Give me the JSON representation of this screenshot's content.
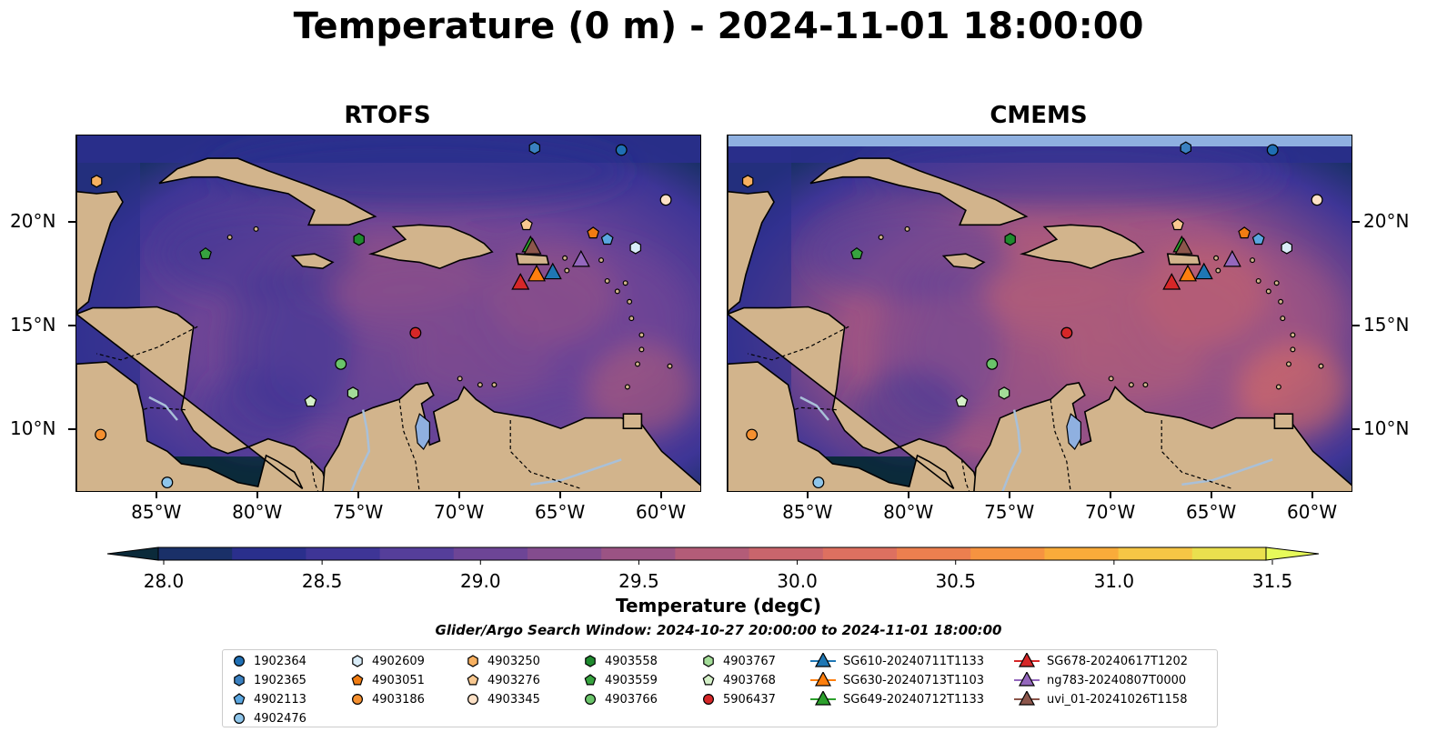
{
  "title": "Temperature (0 m) - 2024-11-01 18:00:00",
  "panels": [
    {
      "title": "RTOFS"
    },
    {
      "title": "CMEMS"
    }
  ],
  "map": {
    "lon_range": [
      -89,
      -58
    ],
    "lat_range": [
      7,
      24.2
    ],
    "lon_ticks": [
      {
        "lon": -85,
        "label": "85°W"
      },
      {
        "lon": -80,
        "label": "80°W"
      },
      {
        "lon": -75,
        "label": "75°W"
      },
      {
        "lon": -70,
        "label": "70°W"
      },
      {
        "lon": -65,
        "label": "65°W"
      },
      {
        "lon": -60,
        "label": "60°W"
      }
    ],
    "lat_ticks": [
      {
        "lat": 20,
        "label": "20°N"
      },
      {
        "lat": 15,
        "label": "15°N"
      },
      {
        "lat": 10,
        "label": "10°N"
      }
    ],
    "colors": {
      "land": "#d2b48c",
      "ocean_deep": "#0b2a3a",
      "lake": "#8fb0e0",
      "river": "#a9c0d8"
    }
  },
  "colorbar": {
    "label": "Temperature (degC)",
    "ticks": [
      "28.0",
      "28.5",
      "29.0",
      "29.5",
      "30.0",
      "30.5",
      "31.0",
      "31.5"
    ],
    "min": 28.0,
    "max": 31.5,
    "colors": [
      "#0b2a3a",
      "#1a3068",
      "#2a2f8c",
      "#3e3596",
      "#553e9a",
      "#6d4596",
      "#844c8e",
      "#9b5384",
      "#b35c78",
      "#c9656c",
      "#dd7060",
      "#ec7f4f",
      "#f69340",
      "#f9ab3a",
      "#f6c645",
      "#eae04e",
      "#e7fa5a"
    ]
  },
  "search_window": "Glider/Argo Search Window: 2024-10-27 20:00:00 to 2024-11-01 18:00:00",
  "legend": [
    {
      "label": "1902364",
      "marker": "circle",
      "color": "#1f6fb4"
    },
    {
      "label": "1902365",
      "marker": "hexagon",
      "color": "#3a80c0"
    },
    {
      "label": "4902113",
      "marker": "pentagon",
      "color": "#5aa6e0"
    },
    {
      "label": "4902476",
      "marker": "circle",
      "color": "#8ec5ea"
    },
    {
      "label": "4902609",
      "marker": "hexagon",
      "color": "#d9ecf8"
    },
    {
      "label": "4903051",
      "marker": "pentagon",
      "color": "#f07c12"
    },
    {
      "label": "4903186",
      "marker": "circle",
      "color": "#f59030"
    },
    {
      "label": "4903250",
      "marker": "hexagon",
      "color": "#f7b060"
    },
    {
      "label": "4903276",
      "marker": "pentagon",
      "color": "#f8c890"
    },
    {
      "label": "4903345",
      "marker": "circle",
      "color": "#fde1c6"
    },
    {
      "label": "4903558",
      "marker": "hexagon",
      "color": "#1f8a2e"
    },
    {
      "label": "4903559",
      "marker": "pentagon",
      "color": "#37a33f"
    },
    {
      "label": "4903766",
      "marker": "circle",
      "color": "#6ac46a"
    },
    {
      "label": "4903767",
      "marker": "hexagon",
      "color": "#a3dc98"
    },
    {
      "label": "4903768",
      "marker": "pentagon",
      "color": "#d4f0c8"
    },
    {
      "label": "5906437",
      "marker": "circle",
      "color": "#d62728"
    },
    {
      "label": "SG610-20240711T1133",
      "marker": "triangle",
      "color": "#1f77b4"
    },
    {
      "label": "SG630-20240713T1103",
      "marker": "triangle",
      "color": "#ff7f0e"
    },
    {
      "label": "SG649-20240712T1133",
      "marker": "triangle",
      "color": "#2ca02c"
    },
    {
      "label": "SG678-20240617T1202",
      "marker": "triangle",
      "color": "#d62728"
    },
    {
      "label": "ng783-20240807T0000",
      "marker": "triangle",
      "color": "#9467bd"
    },
    {
      "label": "uvi_01-20241026T1158",
      "marker": "triangle",
      "color": "#8c564b"
    }
  ],
  "markers": [
    {
      "id": "1902364",
      "lon": -62.0,
      "lat": 23.5
    },
    {
      "id": "1902365",
      "lon": -66.3,
      "lat": 23.6
    },
    {
      "id": "4902113",
      "lon": -62.7,
      "lat": 19.2
    },
    {
      "id": "4902476",
      "lon": -84.5,
      "lat": 7.5
    },
    {
      "id": "4902609",
      "lon": -61.3,
      "lat": 18.8
    },
    {
      "id": "4903051",
      "lon": -63.4,
      "lat": 19.5
    },
    {
      "id": "4903186",
      "lon": -87.8,
      "lat": 9.8
    },
    {
      "id": "4903250",
      "lon": -88.0,
      "lat": 22.0
    },
    {
      "id": "4903276",
      "lon": -66.7,
      "lat": 19.9
    },
    {
      "id": "4903345",
      "lon": -59.8,
      "lat": 21.1
    },
    {
      "id": "4903558",
      "lon": -75.0,
      "lat": 19.2
    },
    {
      "id": "4903559",
      "lon": -82.6,
      "lat": 18.5
    },
    {
      "id": "4903766",
      "lon": -75.9,
      "lat": 13.2
    },
    {
      "id": "4903767",
      "lon": -75.3,
      "lat": 11.8
    },
    {
      "id": "4903768",
      "lon": -77.4,
      "lat": 11.4
    },
    {
      "id": "5906437",
      "lon": -72.2,
      "lat": 14.7
    },
    {
      "id": "SG610-20240711T1133",
      "lon": -65.4,
      "lat": 17.6
    },
    {
      "id": "SG630-20240713T1103",
      "lon": -66.2,
      "lat": 17.5
    },
    {
      "id": "SG649-20240712T1133",
      "lon": -66.5,
      "lat": 18.9
    },
    {
      "id": "SG678-20240617T1202",
      "lon": -67.0,
      "lat": 17.1
    },
    {
      "id": "ng783-20240807T0000",
      "lon": -64.0,
      "lat": 18.2
    },
    {
      "id": "uvi_01-20241026T1158",
      "lon": -66.4,
      "lat": 18.8
    }
  ]
}
